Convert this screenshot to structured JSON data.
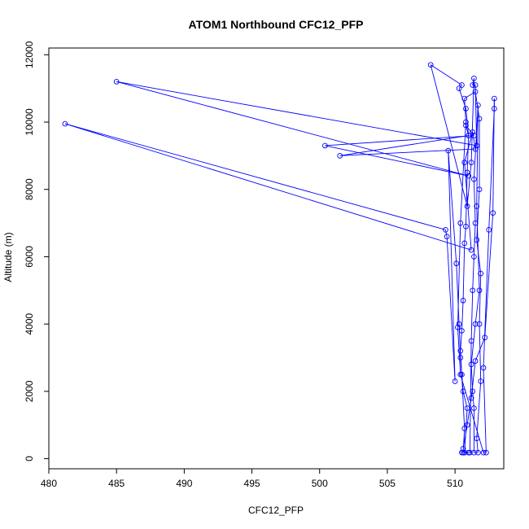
{
  "chart_data": {
    "type": "line",
    "title": "ATOM1 Northbound CFC12_PFP",
    "xlabel": "CFC12_PFP",
    "ylabel": "Altitude (m)",
    "xlim": [
      480,
      513.6
    ],
    "ylim": [
      -300,
      12200
    ],
    "x_ticks": [
      480,
      485,
      490,
      495,
      500,
      505,
      510
    ],
    "y_ticks": [
      0,
      2000,
      4000,
      6000,
      8000,
      10000,
      12000
    ],
    "grid": false,
    "legend": "none",
    "series_color": "#0000ff",
    "markers": "open-circle",
    "points": [
      {
        "x": 510.5,
        "y": 180
      },
      {
        "x": 510.6,
        "y": 180
      },
      {
        "x": 510.7,
        "y": 900
      },
      {
        "x": 510.5,
        "y": 2500
      },
      {
        "x": 510.4,
        "y": 3200
      },
      {
        "x": 510.5,
        "y": 3800
      },
      {
        "x": 510.6,
        "y": 4700
      },
      {
        "x": 510.7,
        "y": 6400
      },
      {
        "x": 510.8,
        "y": 6900
      },
      {
        "x": 510.9,
        "y": 8500
      },
      {
        "x": 511.0,
        "y": 9600
      },
      {
        "x": 510.8,
        "y": 10400
      },
      {
        "x": 510.3,
        "y": 11000
      },
      {
        "x": 510.5,
        "y": 11100
      },
      {
        "x": 508.2,
        "y": 11700
      },
      {
        "x": 510.9,
        "y": 7500
      },
      {
        "x": 511.2,
        "y": 8800
      },
      {
        "x": 511.4,
        "y": 11300
      },
      {
        "x": 511.3,
        "y": 11100
      },
      {
        "x": 511.5,
        "y": 11100
      },
      {
        "x": 511.6,
        "y": 9300
      },
      {
        "x": 485.0,
        "y": 11200
      },
      {
        "x": 511.0,
        "y": 8400
      },
      {
        "x": 500.4,
        "y": 9300
      },
      {
        "x": 511.4,
        "y": 9600
      },
      {
        "x": 510.8,
        "y": 9900
      },
      {
        "x": 511.0,
        "y": 9600
      },
      {
        "x": 501.5,
        "y": 9000
      },
      {
        "x": 511.5,
        "y": 9200
      },
      {
        "x": 511.3,
        "y": 9700
      },
      {
        "x": 510.7,
        "y": 8800
      },
      {
        "x": 511.2,
        "y": 6200
      },
      {
        "x": 481.2,
        "y": 9950
      },
      {
        "x": 509.3,
        "y": 6800
      },
      {
        "x": 509.4,
        "y": 6600
      },
      {
        "x": 510.0,
        "y": 2300
      },
      {
        "x": 509.5,
        "y": 9150
      },
      {
        "x": 510.1,
        "y": 5800
      },
      {
        "x": 510.3,
        "y": 4000
      },
      {
        "x": 510.4,
        "y": 3000
      },
      {
        "x": 510.6,
        "y": 2000
      },
      {
        "x": 510.9,
        "y": 1500
      },
      {
        "x": 510.7,
        "y": 180
      },
      {
        "x": 511.0,
        "y": 180
      },
      {
        "x": 511.1,
        "y": 180
      },
      {
        "x": 511.2,
        "y": 3500
      },
      {
        "x": 511.3,
        "y": 5000
      },
      {
        "x": 511.4,
        "y": 6000
      },
      {
        "x": 511.5,
        "y": 7000
      },
      {
        "x": 511.4,
        "y": 8300
      },
      {
        "x": 511.7,
        "y": 10500
      },
      {
        "x": 511.6,
        "y": 7500
      },
      {
        "x": 511.8,
        "y": 5000
      },
      {
        "x": 511.5,
        "y": 4000
      },
      {
        "x": 511.2,
        "y": 2800
      },
      {
        "x": 511.3,
        "y": 2000
      },
      {
        "x": 511.4,
        "y": 1500
      },
      {
        "x": 511.4,
        "y": 180
      },
      {
        "x": 511.7,
        "y": 180
      },
      {
        "x": 511.6,
        "y": 600
      },
      {
        "x": 511.9,
        "y": 2300
      },
      {
        "x": 511.8,
        "y": 4000
      },
      {
        "x": 511.9,
        "y": 5500
      },
      {
        "x": 511.6,
        "y": 6500
      },
      {
        "x": 511.8,
        "y": 8000
      },
      {
        "x": 511.8,
        "y": 10100
      },
      {
        "x": 511.5,
        "y": 10900
      },
      {
        "x": 510.7,
        "y": 10700
      },
      {
        "x": 510.8,
        "y": 10000
      },
      {
        "x": 510.4,
        "y": 7000
      },
      {
        "x": 510.2,
        "y": 3900
      },
      {
        "x": 510.4,
        "y": 2500
      },
      {
        "x": 512.1,
        "y": 180
      },
      {
        "x": 512.3,
        "y": 180
      },
      {
        "x": 512.1,
        "y": 2700
      },
      {
        "x": 512.5,
        "y": 6800
      },
      {
        "x": 512.9,
        "y": 10400
      },
      {
        "x": 512.9,
        "y": 10700
      },
      {
        "x": 512.8,
        "y": 7300
      },
      {
        "x": 512.2,
        "y": 3600
      },
      {
        "x": 511.5,
        "y": 2900
      },
      {
        "x": 511.2,
        "y": 1800
      },
      {
        "x": 510.9,
        "y": 1000
      },
      {
        "x": 510.6,
        "y": 300
      }
    ]
  }
}
